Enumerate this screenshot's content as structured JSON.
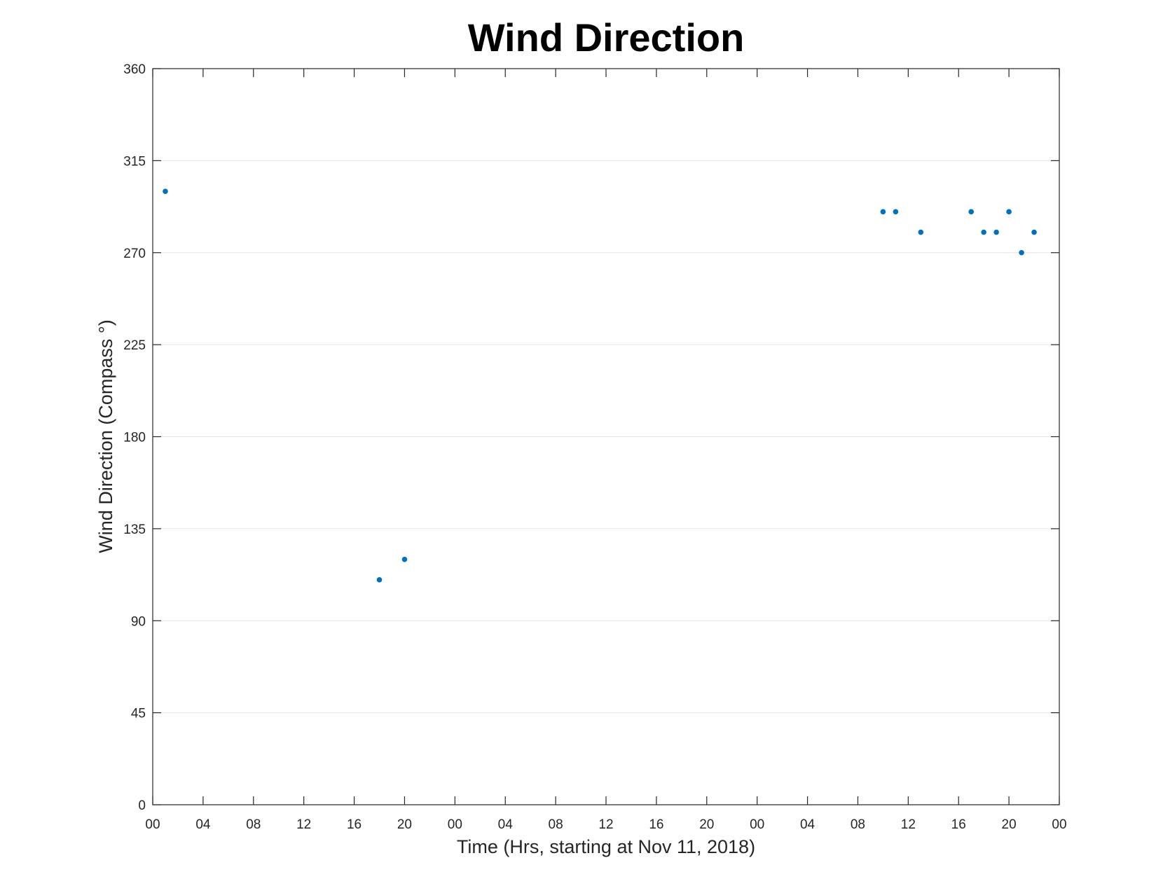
{
  "chart_data": {
    "type": "scatter",
    "title": "Wind Direction",
    "xlabel": "Time (Hrs, starting at Nov 11, 2018)",
    "ylabel": "Wind Direction (Compass °)",
    "xlim": [
      "2018-11-11 00:00",
      "2018-11-14 00:00"
    ],
    "ylim": [
      0,
      360
    ],
    "x_tick_labels": [
      "00",
      "04",
      "08",
      "12",
      "16",
      "20",
      "00",
      "04",
      "08",
      "12",
      "16",
      "20",
      "00",
      "04",
      "08",
      "12",
      "16",
      "20",
      "00"
    ],
    "y_ticks": [
      0,
      45,
      90,
      135,
      180,
      225,
      270,
      315,
      360
    ],
    "grid": "y-major",
    "marker_color": "#0072BD",
    "series": [
      {
        "points": [
          {
            "x": "2018-11-11 01:00",
            "y": 300
          },
          {
            "x": "2018-11-11 18:00",
            "y": 110
          },
          {
            "x": "2018-11-11 20:00",
            "y": 120
          },
          {
            "x": "2018-11-13 10:00",
            "y": 290
          },
          {
            "x": "2018-11-13 11:00",
            "y": 290
          },
          {
            "x": "2018-11-13 13:00",
            "y": 280
          },
          {
            "x": "2018-11-13 17:00",
            "y": 290
          },
          {
            "x": "2018-11-13 18:00",
            "y": 280
          },
          {
            "x": "2018-11-13 19:00",
            "y": 280
          },
          {
            "x": "2018-11-13 20:00",
            "y": 290
          },
          {
            "x": "2018-11-13 21:00",
            "y": 270
          },
          {
            "x": "2018-11-13 22:00",
            "y": 280
          }
        ]
      }
    ]
  }
}
